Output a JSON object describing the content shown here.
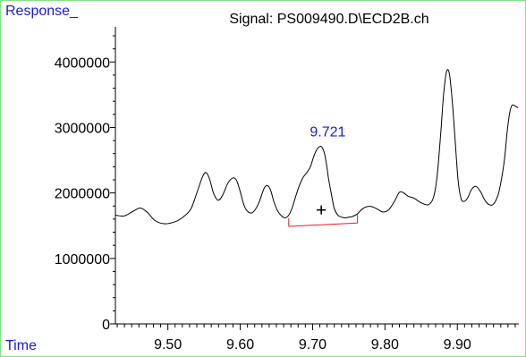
{
  "chart_data": {
    "type": "line",
    "title": "Signal: PS009490.D\\ECD2B.ch",
    "ylabel": "Response_",
    "xlabel": "Time",
    "xlim": [
      9.4275,
      9.985
    ],
    "ylim": [
      0,
      4400000
    ],
    "xticks": [
      9.5,
      9.6,
      9.7,
      9.8,
      9.9
    ],
    "xtick_labels": [
      "9.50",
      "9.60",
      "9.70",
      "9.80",
      "9.90"
    ],
    "yticks": [
      0,
      1000000,
      2000000,
      3000000,
      4000000
    ],
    "ytick_labels": [
      "0",
      "1000000",
      "2000000",
      "3000000",
      "4000000"
    ],
    "peak_label": {
      "text": "9.721",
      "x": 9.721,
      "y": 2700000
    },
    "baseline": {
      "x": [
        9.667,
        9.762
      ],
      "y": [
        1490000,
        1540000
      ]
    },
    "series": [
      {
        "x": [
          9.4275,
          9.44,
          9.452,
          9.462,
          9.472,
          9.482,
          9.495,
          9.51,
          9.522,
          9.532,
          9.54,
          9.548,
          9.553,
          9.558,
          9.563,
          9.569,
          9.575,
          9.583,
          9.59,
          9.595,
          9.6,
          9.605,
          9.61,
          9.617,
          9.625,
          9.633,
          9.638,
          9.642,
          9.647,
          9.652,
          9.657,
          9.662,
          9.667,
          9.672,
          9.677,
          9.682,
          9.687,
          9.692,
          9.697,
          9.702,
          9.707,
          9.712,
          9.716,
          9.719,
          9.722,
          9.726,
          9.73,
          9.735,
          9.74,
          9.745,
          9.75,
          9.755,
          9.762,
          9.768,
          9.775,
          9.782,
          9.79,
          9.797,
          9.805,
          9.813,
          9.82,
          9.826,
          9.832,
          9.84,
          9.85,
          9.86,
          9.867,
          9.872,
          9.877,
          9.881,
          9.885,
          9.889,
          9.893,
          9.897,
          9.901,
          9.905,
          9.909,
          9.914,
          9.92,
          9.926,
          9.932,
          9.938,
          9.944,
          9.95,
          9.956,
          9.96,
          9.965,
          9.969,
          9.972,
          9.975,
          9.978,
          9.981,
          9.984
        ],
        "y": [
          1660000,
          1650000,
          1720000,
          1770000,
          1700000,
          1580000,
          1530000,
          1560000,
          1640000,
          1760000,
          2000000,
          2250000,
          2310000,
          2200000,
          2000000,
          1890000,
          1950000,
          2150000,
          2230000,
          2190000,
          2020000,
          1820000,
          1720000,
          1700000,
          1830000,
          2070000,
          2110000,
          2040000,
          1850000,
          1720000,
          1650000,
          1620000,
          1660000,
          1780000,
          1960000,
          2120000,
          2240000,
          2310000,
          2400000,
          2570000,
          2680000,
          2710000,
          2620000,
          2450000,
          2220000,
          1980000,
          1760000,
          1660000,
          1630000,
          1620000,
          1630000,
          1640000,
          1680000,
          1750000,
          1790000,
          1790000,
          1750000,
          1710000,
          1740000,
          1870000,
          2010000,
          2000000,
          1950000,
          1920000,
          1850000,
          1820000,
          1930000,
          2250000,
          2900000,
          3500000,
          3850000,
          3820000,
          3400000,
          2800000,
          2200000,
          1920000,
          1870000,
          1920000,
          2060000,
          2100000,
          2020000,
          1890000,
          1820000,
          1830000,
          1960000,
          2150000,
          2500000,
          2950000,
          3200000,
          3330000,
          3340000,
          3320000,
          3300000
        ]
      }
    ]
  }
}
